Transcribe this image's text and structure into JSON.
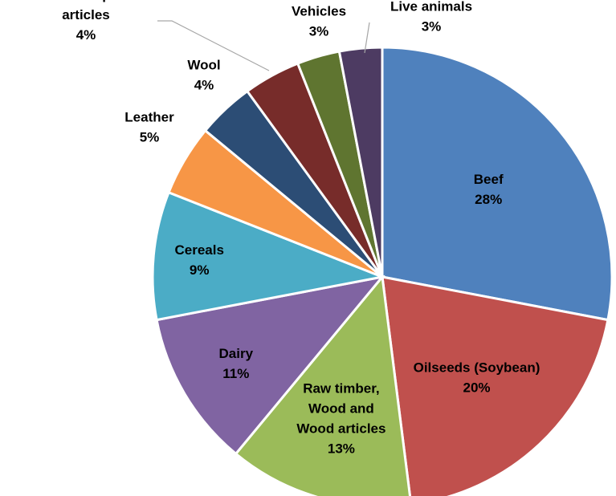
{
  "chart_data": {
    "type": "pie",
    "title": "",
    "start_angle_deg": 0,
    "direction": "clockwise",
    "slices": [
      {
        "label": [
          "Beef"
        ],
        "value": 28,
        "value_label": "28%",
        "color": "#4f81bd"
      },
      {
        "label": [
          "Oilseeds (Soybean)"
        ],
        "value": 20,
        "value_label": "20%",
        "color": "#c0504d"
      },
      {
        "label": [
          "Raw timber,",
          "Wood and",
          "Wood articles"
        ],
        "value": 13,
        "value_label": "13%",
        "color": "#9bbb59"
      },
      {
        "label": [
          "Dairy"
        ],
        "value": 11,
        "value_label": "11%",
        "color": "#8064a2"
      },
      {
        "label": [
          "Cereals"
        ],
        "value": 9,
        "value_label": "9%",
        "color": "#4bacc6"
      },
      {
        "label": [
          "Leather"
        ],
        "value": 5,
        "value_label": "5%",
        "color": "#f79646"
      },
      {
        "label": [
          "Wool"
        ],
        "value": 4,
        "value_label": "4%",
        "color": "#2c4d75"
      },
      {
        "label": [
          "Plastic and plastic",
          "articles"
        ],
        "value": 4,
        "value_label": "4%",
        "color": "#772c2a"
      },
      {
        "label": [
          "Vehicles"
        ],
        "value": 3,
        "value_label": "3%",
        "color": "#5f7530"
      },
      {
        "label": [
          "Live animals"
        ],
        "value": 3,
        "value_label": "3%",
        "color": "#4d3b62"
      }
    ]
  }
}
